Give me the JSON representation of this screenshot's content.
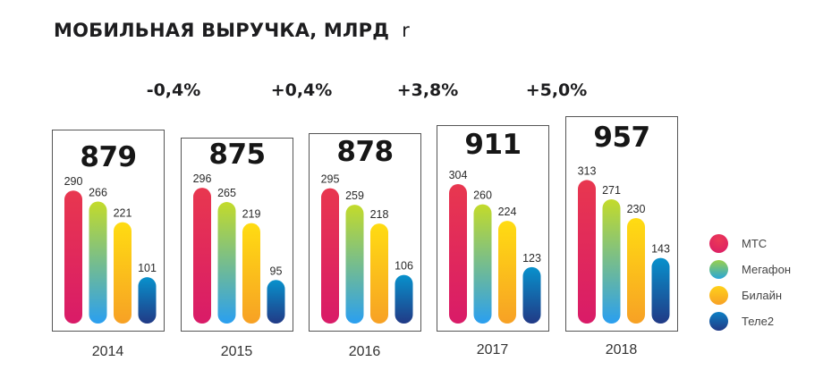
{
  "title": "МОБИЛЬНАЯ ВЫРУЧКА, МЛРД",
  "title_unit": "r",
  "chart_data": {
    "type": "bar",
    "title": "МОБИЛЬНАЯ ВЫРУЧКА, МЛРД r",
    "xlabel": "",
    "ylabel": "",
    "categories": [
      "2014",
      "2015",
      "2016",
      "2017",
      "2018"
    ],
    "totals": [
      "879",
      "875",
      "878",
      "911",
      "957"
    ],
    "growth": [
      "-0,4%",
      "+0,4%",
      "+3,8%",
      "+5,0%"
    ],
    "series": [
      {
        "name": "МТС",
        "values": [
          290,
          296,
          295,
          304,
          313
        ],
        "gradient": [
          "#e8374f",
          "#d91b68"
        ]
      },
      {
        "name": "Мегафон",
        "values": [
          266,
          265,
          259,
          260,
          271
        ],
        "gradient": [
          "#c3db2a",
          "#2a9ff0"
        ]
      },
      {
        "name": "Билайн",
        "values": [
          221,
          219,
          218,
          224,
          230
        ],
        "gradient": [
          "#ffdc12",
          "#f7a125"
        ]
      },
      {
        "name": "Теле2",
        "values": [
          101,
          95,
          106,
          123,
          143
        ],
        "gradient": [
          "#0891cc",
          "#213a86"
        ]
      }
    ],
    "ylim": [
      0,
      330
    ],
    "grid": false,
    "legend": "right"
  }
}
